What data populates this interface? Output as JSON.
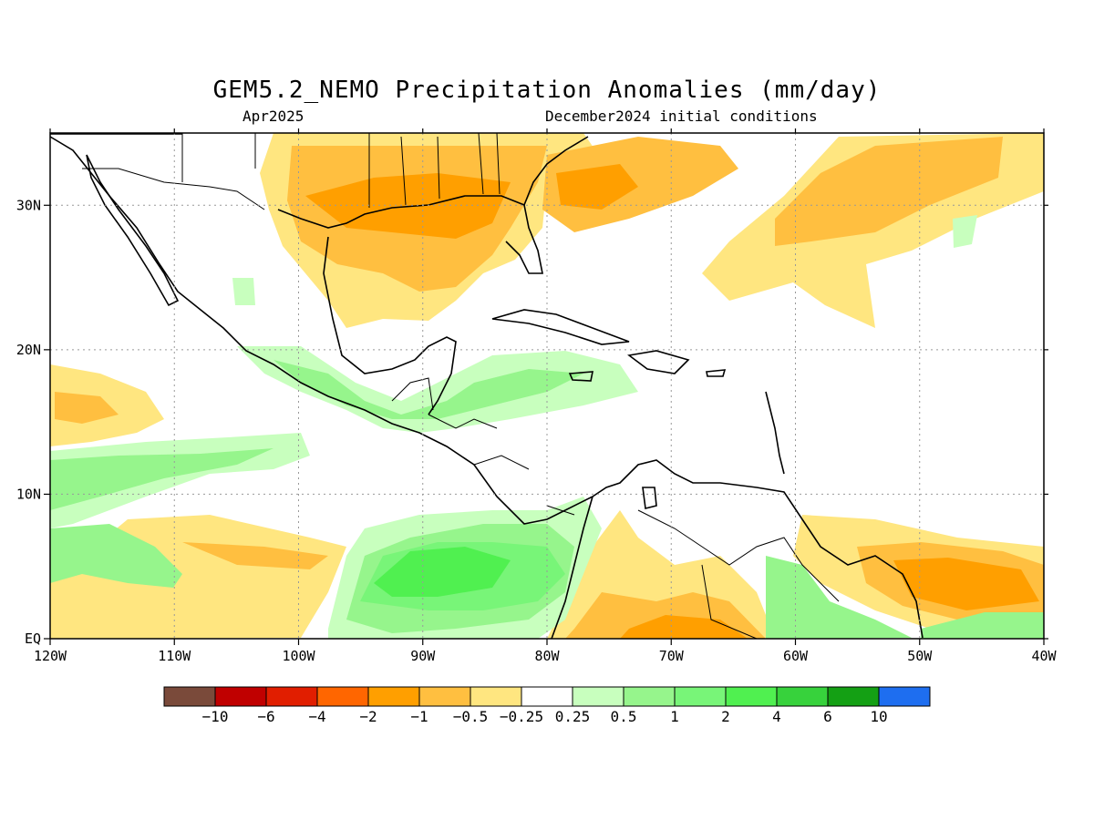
{
  "title": "GEM5.2_NEMO Precipitation Anomalies (mm/day)",
  "subtitle_left": "Apr2025",
  "subtitle_right": "December2024 initial conditions",
  "map": {
    "lon_range": [
      -120,
      -40
    ],
    "lat_range": [
      0,
      35
    ],
    "x_ticks": [
      {
        "lon": -120,
        "label": "120W"
      },
      {
        "lon": -110,
        "label": "110W"
      },
      {
        "lon": -100,
        "label": "100W"
      },
      {
        "lon": -90,
        "label": "90W"
      },
      {
        "lon": -80,
        "label": "80W"
      },
      {
        "lon": -70,
        "label": "70W"
      },
      {
        "lon": -60,
        "label": "60W"
      },
      {
        "lon": -50,
        "label": "50W"
      },
      {
        "lon": -40,
        "label": "40W"
      }
    ],
    "y_ticks": [
      {
        "lat": 0,
        "label": "EQ"
      },
      {
        "lat": 10,
        "label": "10N"
      },
      {
        "lat": 20,
        "label": "20N"
      },
      {
        "lat": 30,
        "label": "30N"
      }
    ],
    "grid": true
  },
  "colorbar": {
    "colors": [
      "#7a4a3a",
      "#c00000",
      "#e11e00",
      "#ff6600",
      "#ff9f00",
      "#ffbf40",
      "#ffe680",
      "#ffffff",
      "#c8ffbe",
      "#96f58c",
      "#78f578",
      "#50f050",
      "#37d23c",
      "#14a014",
      "#1e6ef0"
    ],
    "labels": [
      "-10",
      "-6",
      "-4",
      "-2",
      "-1",
      "-0.5",
      "-0.25",
      "0.25",
      "0.5",
      "1",
      "2",
      "4",
      "6",
      "10"
    ]
  }
}
